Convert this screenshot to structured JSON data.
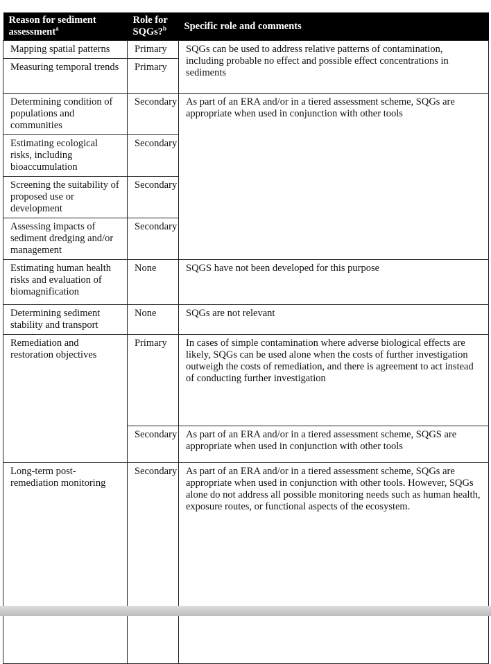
{
  "headers": {
    "reason": "Reason for sediment assessment",
    "reason_sup": "a",
    "role": "Role for SQGs?",
    "role_sup": "b",
    "comments": "Specific role and comments"
  },
  "rows": [
    {
      "reason": "Mapping spatial patterns",
      "role": "Primary"
    },
    {
      "reason": "Measuring temporal trends",
      "role": "Primary"
    },
    {
      "reason": "Determining condition of populations and communities",
      "role": "Secondary"
    },
    {
      "reason": "Estimating ecological risks, including bioaccumulation",
      "role": "Secondary"
    },
    {
      "reason": "Screening the suitability of proposed use or development",
      "role": "Secondary"
    },
    {
      "reason": "Assessing impacts of sediment dredging and/or management",
      "role": "Secondary"
    },
    {
      "reason": "Estimating human health risks and evaluation of biomagnification",
      "role": "None"
    },
    {
      "reason": "Determining sediment stability and transport",
      "role": "None"
    },
    {
      "reason": "Remediation and restoration objectives",
      "role": "Primary"
    },
    {
      "role": "Secondary"
    },
    {
      "reason": "Long-term post-remediation monitoring",
      "role": "Secondary"
    }
  ],
  "comments": [
    "SQGs can be used to address relative patterns of contamination, including probable no effect and possible effect concentrations in sediments",
    "As part of an ERA and/or in a tiered assessment scheme, SQGs are appropriate when used in conjunction with other tools",
    "SQGS have not been developed for this purpose",
    "SQGs are not relevant",
    "In cases of simple contamination where adverse biological effects are likely, SQGs can be used alone when the costs of further investigation outweigh the costs of remediation, and there is agreement to act instead of conducting further investigation",
    "As part of an ERA and/or in a tiered assessment scheme, SQGS are appropriate when used in conjunction with other tools",
    "As part of an ERA and/or in a tiered assessment scheme, SQGs are appropriate when used in conjunction with other tools. However, SQGs alone do not address all possible monitoring needs such as human health, exposure routes, or functional aspects of the ecosystem."
  ]
}
